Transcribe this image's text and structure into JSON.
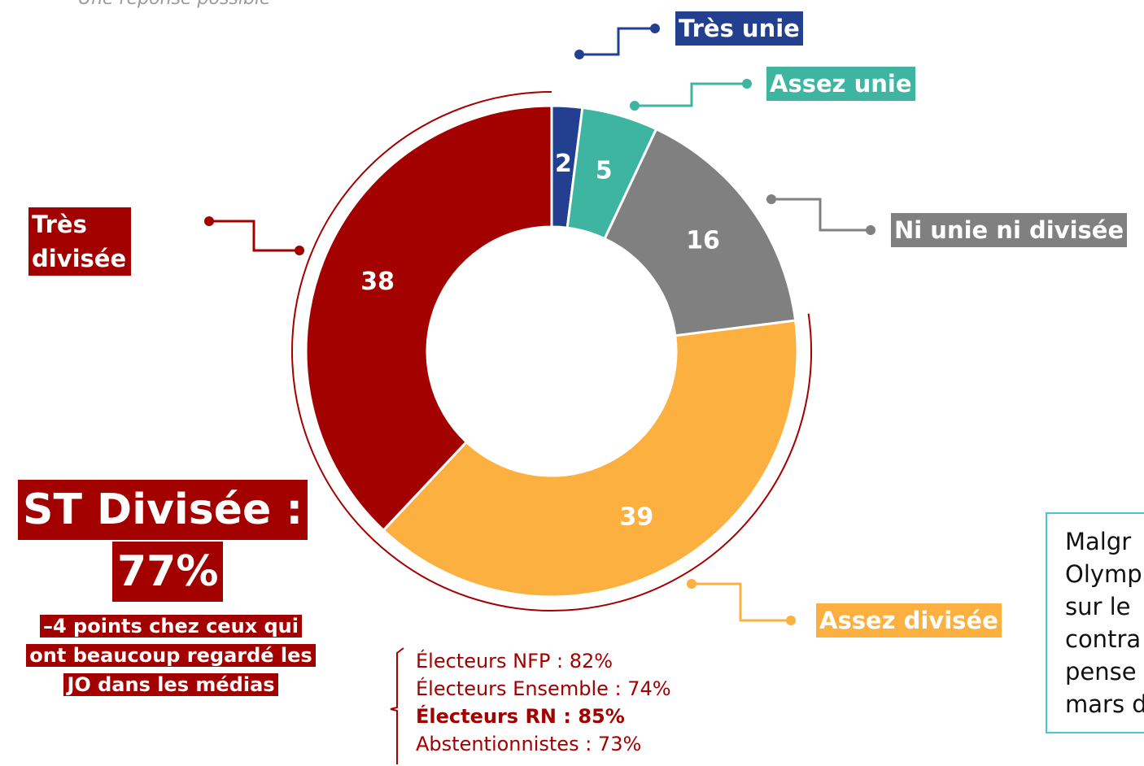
{
  "chart_data": {
    "type": "donut",
    "subtitle": "Une réponse possible",
    "categories": [
      "Très unie",
      "Assez unie",
      "Ni unie ni divisée",
      "Assez divisée",
      "Très divisée"
    ],
    "values": [
      2,
      5,
      16,
      39,
      38
    ],
    "colors": [
      "#233f8f",
      "#3db5a0",
      "#808080",
      "#fbb040",
      "#a30000"
    ],
    "summary": [
      "ST Divisée :",
      "77%"
    ],
    "note": [
      "–4 points chez ceux qui",
      "ont beaucoup regardé les",
      "JO dans les médias"
    ],
    "breakdown": [
      {
        "text": "Électeurs NFP : 82%",
        "bold": false
      },
      {
        "text": "Électeurs Ensemble : 74%",
        "bold": false
      },
      {
        "text": "Électeurs RN : 85%",
        "bold": true
      },
      {
        "text": "Abstentionnistes : 73%",
        "bold": false
      }
    ],
    "side_text": [
      "Malgr",
      "Olymp",
      "sur le",
      "contra",
      "pense",
      "mars d"
    ]
  }
}
